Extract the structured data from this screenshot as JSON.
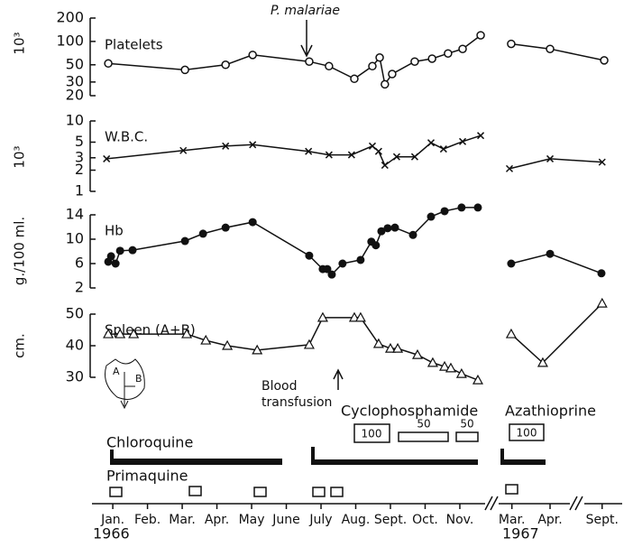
{
  "chart_data": [
    {
      "type": "line",
      "label": "Platelets",
      "ylabel": "10³",
      "log": true,
      "marker": "open-circle",
      "color": "#111111",
      "ylim": [
        20,
        200
      ],
      "yticks": [
        20,
        30,
        50,
        100,
        200
      ],
      "x": [
        -0.13,
        2.08,
        3.25,
        4.03,
        5.66,
        6.23,
        6.96,
        7.48,
        7.69,
        7.84,
        8.05,
        8.7,
        9.2,
        9.66,
        10.08,
        10.6,
        null,
        11.48,
        12.6,
        14.16
      ],
      "values": [
        52,
        43,
        50,
        67,
        55,
        48,
        33,
        48,
        62,
        28,
        38,
        55,
        60,
        70,
        80,
        120,
        null,
        93,
        80,
        57
      ]
    },
    {
      "type": "line",
      "label": "W.B.C.",
      "ylabel": "10³",
      "log": true,
      "marker": "cross",
      "color": "#111111",
      "ylim": [
        1,
        10
      ],
      "yticks": [
        1,
        2,
        3,
        5,
        10
      ],
      "x": [
        -0.18,
        2.03,
        3.25,
        4.03,
        5.64,
        6.23,
        6.88,
        7.48,
        7.66,
        7.84,
        8.18,
        8.7,
        9.17,
        9.53,
        10.08,
        10.6,
        null,
        11.43,
        12.6,
        14.1
      ],
      "values": [
        2.9,
        3.8,
        4.4,
        4.6,
        3.7,
        3.3,
        3.3,
        4.4,
        3.7,
        2.35,
        3.1,
        3.1,
        4.9,
        4.0,
        5.1,
        6.2,
        null,
        2.1,
        2.9,
        2.6
      ]
    },
    {
      "type": "line",
      "label": "Hb",
      "ylabel": "g./100 ml.",
      "log": false,
      "marker": "filled-circle",
      "color": "#111111",
      "ylim": [
        2,
        14
      ],
      "yticks": [
        2,
        6,
        10,
        14
      ],
      "x": [
        -0.13,
        -0.05,
        0.08,
        0.21,
        0.57,
        2.08,
        2.6,
        3.25,
        4.03,
        5.66,
        6.05,
        6.18,
        6.31,
        6.62,
        7.14,
        7.45,
        7.58,
        7.74,
        7.92,
        8.13,
        8.65,
        9.17,
        9.56,
        10.05,
        10.52,
        null,
        11.48,
        12.6,
        14.08
      ],
      "values": [
        6.3,
        7.2,
        6.0,
        8.1,
        8.2,
        9.7,
        10.9,
        11.9,
        12.8,
        7.3,
        5.1,
        5.1,
        4.2,
        6.0,
        6.6,
        9.6,
        9.0,
        11.3,
        11.8,
        11.9,
        10.7,
        13.7,
        14.6,
        15.2,
        15.2,
        null,
        6.0,
        7.6,
        4.4
      ]
    },
    {
      "type": "line",
      "label": "Spleen (A+B)",
      "ylabel": "cm.",
      "log": false,
      "marker": "open-triangle",
      "color": "#111111",
      "ylim": [
        30,
        50
      ],
      "yticks": [
        30,
        40,
        50
      ],
      "x": [
        -0.13,
        0.21,
        0.6,
        2.13,
        2.68,
        3.3,
        4.16,
        5.66,
        6.05,
        6.96,
        7.14,
        7.66,
        8.0,
        8.21,
        8.78,
        9.22,
        9.56,
        9.74,
        10.05,
        10.52,
        null,
        11.48,
        12.39,
        14.1
      ],
      "values": [
        43.7,
        43.7,
        43.7,
        43.7,
        41.7,
        40,
        38.6,
        40.3,
        48.9,
        48.9,
        48.9,
        40.6,
        39.1,
        39.1,
        37.1,
        34.6,
        33.4,
        32.9,
        31.1,
        29.1,
        null,
        43.7,
        34.6,
        53.4
      ]
    }
  ],
  "time_axis": {
    "xlim": [
      -0.6,
      14.6
    ],
    "xticks": [
      {
        "value": 0,
        "label": "Jan."
      },
      {
        "value": 1,
        "label": "Feb."
      },
      {
        "value": 2,
        "label": "Mar."
      },
      {
        "value": 3,
        "label": "Apr."
      },
      {
        "value": 4,
        "label": "May"
      },
      {
        "value": 5,
        "label": "June"
      },
      {
        "value": 6,
        "label": "July"
      },
      {
        "value": 7,
        "label": "Aug."
      },
      {
        "value": 8,
        "label": "Sept."
      },
      {
        "value": 9,
        "label": "Oct."
      },
      {
        "value": 10,
        "label": "Nov."
      },
      {
        "value": 11.5,
        "label": "Mar."
      },
      {
        "value": 12.6,
        "label": "Apr."
      },
      {
        "value": 14.1,
        "label": "Sept."
      }
    ],
    "years": [
      "1966",
      "1967"
    ]
  },
  "annotations": {
    "infection": "P. malariae",
    "transfusion": [
      "Blood",
      "transfusion"
    ],
    "diagram": [
      "A",
      "B"
    ]
  },
  "drugs": {
    "cyclophosphamide": "Cyclophosphamide",
    "azathioprine": "Azathioprine",
    "chloroquine": "Chloroquine",
    "primaquine": "Primaquine",
    "doses": [
      "100",
      "50",
      "50",
      "100"
    ]
  }
}
